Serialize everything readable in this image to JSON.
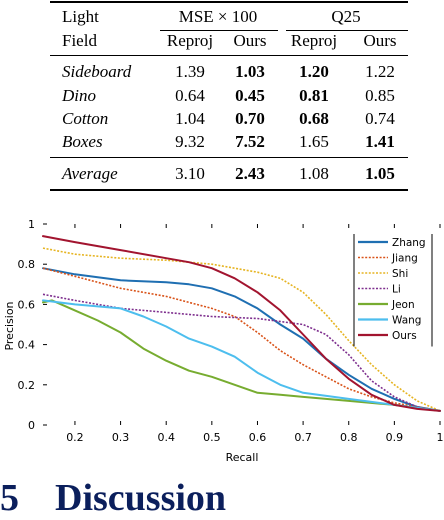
{
  "table": {
    "header1": {
      "col0": "Light",
      "group1": "MSE × 100",
      "group2": "Q25"
    },
    "header2": {
      "col0": "Field",
      "c1": "Reproj",
      "c2": "Ours",
      "c3": "Reproj",
      "c4": "Ours"
    },
    "rows": [
      {
        "name": "Sideboard",
        "v": [
          "1.39",
          "1.03",
          "1.20",
          "1.22"
        ],
        "bold": [
          false,
          true,
          true,
          false
        ]
      },
      {
        "name": "Dino",
        "v": [
          "0.64",
          "0.45",
          "0.81",
          "0.85"
        ],
        "bold": [
          false,
          true,
          true,
          false
        ]
      },
      {
        "name": "Cotton",
        "v": [
          "1.04",
          "0.70",
          "0.68",
          "0.74"
        ],
        "bold": [
          false,
          true,
          true,
          false
        ]
      },
      {
        "name": "Boxes",
        "v": [
          "9.32",
          "7.52",
          "1.65",
          "1.41"
        ],
        "bold": [
          false,
          true,
          false,
          true
        ]
      }
    ],
    "average": {
      "name": "Average",
      "v": [
        "3.10",
        "2.43",
        "1.08",
        "1.05"
      ],
      "bold": [
        false,
        true,
        false,
        true
      ]
    }
  },
  "chart_data": {
    "type": "line",
    "xlabel": "Recall",
    "ylabel": "Precision",
    "xlim": [
      0.13,
      1.0
    ],
    "ylim": [
      0,
      1
    ],
    "xticks": [
      "0.2",
      "0.3",
      "0.4",
      "0.5",
      "0.6",
      "0.7",
      "0.8",
      "0.9",
      "1"
    ],
    "yticks": [
      "0",
      "0.2",
      "0.4",
      "0.6",
      "0.8",
      "1"
    ],
    "legend_position": "top-right",
    "series": [
      {
        "name": "Zhang",
        "color": "#1f6fb2",
        "dash": "solid",
        "x": [
          0.13,
          0.2,
          0.3,
          0.4,
          0.45,
          0.5,
          0.55,
          0.6,
          0.65,
          0.7,
          0.75,
          0.8,
          0.85,
          0.9,
          0.95,
          1.0
        ],
        "y": [
          0.78,
          0.75,
          0.72,
          0.71,
          0.7,
          0.68,
          0.64,
          0.58,
          0.5,
          0.43,
          0.33,
          0.25,
          0.18,
          0.13,
          0.09,
          0.07
        ]
      },
      {
        "name": "Jiang",
        "color": "#d95319",
        "dash": "dotted",
        "x": [
          0.13,
          0.2,
          0.3,
          0.4,
          0.5,
          0.55,
          0.6,
          0.65,
          0.7,
          0.75,
          0.8,
          0.85,
          0.9,
          0.95,
          1.0
        ],
        "y": [
          0.78,
          0.74,
          0.68,
          0.64,
          0.58,
          0.54,
          0.46,
          0.37,
          0.3,
          0.24,
          0.18,
          0.14,
          0.11,
          0.09,
          0.07
        ]
      },
      {
        "name": "Shi",
        "color": "#e6b422",
        "dash": "dotted",
        "x": [
          0.13,
          0.2,
          0.3,
          0.4,
          0.5,
          0.6,
          0.65,
          0.7,
          0.75,
          0.8,
          0.85,
          0.9,
          0.95,
          1.0
        ],
        "y": [
          0.88,
          0.85,
          0.83,
          0.82,
          0.8,
          0.76,
          0.73,
          0.66,
          0.55,
          0.42,
          0.3,
          0.2,
          0.12,
          0.07
        ]
      },
      {
        "name": "Li",
        "color": "#7e2f8e",
        "dash": "dotted",
        "x": [
          0.13,
          0.2,
          0.3,
          0.4,
          0.5,
          0.6,
          0.7,
          0.75,
          0.8,
          0.85,
          0.9,
          0.95,
          1.0
        ],
        "y": [
          0.65,
          0.62,
          0.58,
          0.56,
          0.54,
          0.53,
          0.5,
          0.45,
          0.35,
          0.22,
          0.14,
          0.09,
          0.07
        ]
      },
      {
        "name": "Jeon",
        "color": "#77ac30",
        "dash": "solid",
        "x": [
          0.13,
          0.15,
          0.2,
          0.25,
          0.3,
          0.35,
          0.4,
          0.45,
          0.5,
          0.55,
          0.6,
          0.65,
          0.7,
          0.8,
          0.9,
          1.0
        ],
        "y": [
          0.61,
          0.62,
          0.57,
          0.52,
          0.46,
          0.38,
          0.32,
          0.27,
          0.24,
          0.2,
          0.16,
          0.15,
          0.14,
          0.12,
          0.1,
          0.07
        ]
      },
      {
        "name": "Wang",
        "color": "#4dbeee",
        "dash": "solid",
        "x": [
          0.13,
          0.2,
          0.3,
          0.35,
          0.4,
          0.45,
          0.5,
          0.55,
          0.6,
          0.65,
          0.7,
          0.8,
          0.9,
          1.0
        ],
        "y": [
          0.62,
          0.6,
          0.58,
          0.54,
          0.49,
          0.43,
          0.39,
          0.34,
          0.26,
          0.2,
          0.16,
          0.13,
          0.1,
          0.07
        ]
      },
      {
        "name": "Ours",
        "color": "#a2142f",
        "dash": "solid",
        "x": [
          0.13,
          0.2,
          0.3,
          0.4,
          0.45,
          0.5,
          0.55,
          0.6,
          0.65,
          0.7,
          0.75,
          0.8,
          0.85,
          0.9,
          0.95,
          1.0
        ],
        "y": [
          0.94,
          0.91,
          0.87,
          0.83,
          0.81,
          0.78,
          0.73,
          0.66,
          0.57,
          0.45,
          0.33,
          0.23,
          0.15,
          0.1,
          0.08,
          0.07
        ]
      }
    ]
  },
  "heading": {
    "number": "5",
    "title": "Discussion"
  }
}
